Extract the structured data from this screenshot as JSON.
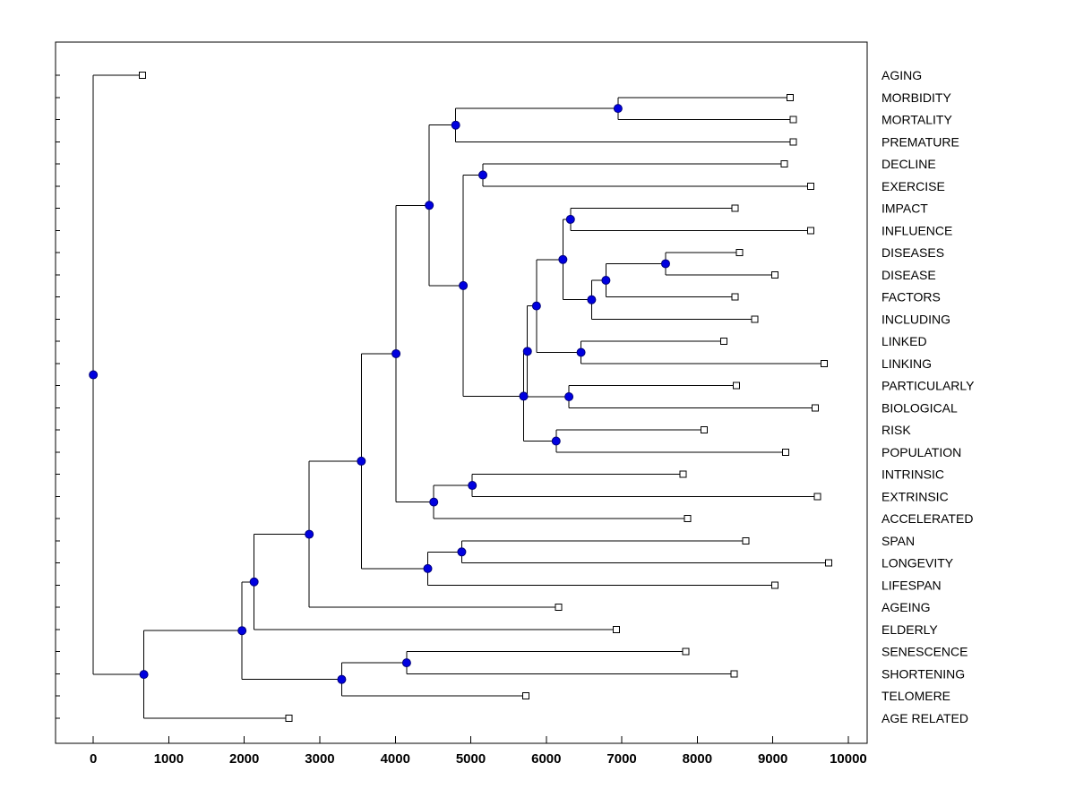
{
  "page": {
    "background": "#FFFFFF"
  },
  "chart_data": {
    "type": "tree",
    "subtype": "horizontal-dendrogram-phylotree",
    "title": "",
    "xlabel": "",
    "ylabel": "",
    "grid": false,
    "legend": null,
    "xlim": [
      -500,
      10250
    ],
    "x_tick_values": [
      0,
      1000,
      2000,
      3000,
      4000,
      5000,
      6000,
      7000,
      8000,
      9000,
      10000
    ],
    "x_tick_labels": [
      "0",
      "1000",
      "2000",
      "3000",
      "4000",
      "5000",
      "6000",
      "7000",
      "8000",
      "9000",
      "10000"
    ],
    "colors": {
      "axis": "#000000",
      "line": "#000000",
      "branch_marker_fill": "#0000E0",
      "branch_marker_edge": "#00007A",
      "leaf_marker_fill": "#FFFFFF",
      "marker_edge": "#000000",
      "label_color": "#000000",
      "background": "#FFFFFF"
    },
    "leaves": [
      {
        "label": "AGING",
        "dist": 650
      },
      {
        "label": "MORBIDITY",
        "dist": 9230
      },
      {
        "label": "MORTALITY",
        "dist": 9270
      },
      {
        "label": "PREMATURE",
        "dist": 9270
      },
      {
        "label": "DECLINE",
        "dist": 9150
      },
      {
        "label": "EXERCISE",
        "dist": 9500
      },
      {
        "label": "IMPACT",
        "dist": 8500
      },
      {
        "label": "INFLUENCE",
        "dist": 9500
      },
      {
        "label": "DISEASES",
        "dist": 8560
      },
      {
        "label": "DISEASE",
        "dist": 9030
      },
      {
        "label": "FACTORS",
        "dist": 8500
      },
      {
        "label": "INCLUDING",
        "dist": 8760
      },
      {
        "label": "LINKED",
        "dist": 8350
      },
      {
        "label": "LINKING",
        "dist": 9680
      },
      {
        "label": "PARTICULARLY",
        "dist": 8520
      },
      {
        "label": "BIOLOGICAL",
        "dist": 9560
      },
      {
        "label": "RISK",
        "dist": 8090
      },
      {
        "label": "POPULATION",
        "dist": 9170
      },
      {
        "label": "INTRINSIC",
        "dist": 7810
      },
      {
        "label": "EXTRINSIC",
        "dist": 9590
      },
      {
        "label": "ACCELERATED",
        "dist": 7870
      },
      {
        "label": "SPAN",
        "dist": 8640
      },
      {
        "label": "LONGEVITY",
        "dist": 9740
      },
      {
        "label": "LIFESPAN",
        "dist": 9030
      },
      {
        "label": "AGEING",
        "dist": 6160
      },
      {
        "label": "ELDERLY",
        "dist": 6930
      },
      {
        "label": "SENESCENCE",
        "dist": 7850
      },
      {
        "label": "SHORTENING",
        "dist": 8490
      },
      {
        "label": "TELOMERE",
        "dist": 5730
      },
      {
        "label": "AGE RELATED",
        "dist": 2590
      }
    ],
    "root": {
      "d": 0,
      "c": [
        {
          "leaf": 0
        },
        {
          "d": 670,
          "c": [
            {
              "d": 1970,
              "c": [
                {
                  "d": 2130,
                  "c": [
                    {
                      "d": 2860,
                      "c": [
                        {
                          "d": 3550,
                          "c": [
                            {
                              "d": 4010,
                              "c": [
                                {
                                  "d": 4450,
                                  "c": [
                                    {
                                      "d": 4800,
                                      "c": [
                                        {
                                          "d": 6950,
                                          "c": [
                                            {
                                              "leaf": 1
                                            },
                                            {
                                              "leaf": 2
                                            }
                                          ]
                                        },
                                        {
                                          "leaf": 3
                                        }
                                      ]
                                    },
                                    {
                                      "d": 4900,
                                      "c": [
                                        {
                                          "d": 5160,
                                          "c": [
                                            {
                                              "leaf": 4
                                            },
                                            {
                                              "leaf": 5
                                            }
                                          ]
                                        },
                                        {
                                          "d": 5700,
                                          "c": [
                                            {
                                              "d": 5750,
                                              "c": [
                                                {
                                                  "d": 5870,
                                                  "c": [
                                                    {
                                                      "d": 6220,
                                                      "c": [
                                                        {
                                                          "d": 6320,
                                                          "c": [
                                                            {
                                                              "leaf": 6
                                                            },
                                                            {
                                                              "leaf": 7
                                                            }
                                                          ]
                                                        },
                                                        {
                                                          "d": 6600,
                                                          "c": [
                                                            {
                                                              "d": 6790,
                                                              "c": [
                                                                {
                                                                  "d": 7580,
                                                                  "c": [
                                                                    {
                                                                      "leaf": 8
                                                                    },
                                                                    {
                                                                      "leaf": 9
                                                                    }
                                                                  ]
                                                                },
                                                                {
                                                                  "leaf": 10
                                                                }
                                                              ]
                                                            },
                                                            {
                                                              "leaf": 11
                                                            }
                                                          ]
                                                        }
                                                      ]
                                                    },
                                                    {
                                                      "d": 6460,
                                                      "c": [
                                                        {
                                                          "leaf": 12
                                                        },
                                                        {
                                                          "leaf": 13
                                                        }
                                                      ]
                                                    }
                                                  ]
                                                },
                                                {
                                                  "d": 6300,
                                                  "c": [
                                                    {
                                                      "leaf": 14
                                                    },
                                                    {
                                                      "leaf": 15
                                                    }
                                                  ]
                                                }
                                              ]
                                            },
                                            {
                                              "d": 6130,
                                              "c": [
                                                {
                                                  "leaf": 16
                                                },
                                                {
                                                  "leaf": 17
                                                }
                                              ]
                                            }
                                          ]
                                        }
                                      ]
                                    }
                                  ]
                                },
                                {
                                  "d": 4510,
                                  "c": [
                                    {
                                      "d": 5020,
                                      "c": [
                                        {
                                          "leaf": 18
                                        },
                                        {
                                          "leaf": 19
                                        }
                                      ]
                                    },
                                    {
                                      "leaf": 20
                                    }
                                  ]
                                }
                              ]
                            },
                            {
                              "d": 4430,
                              "c": [
                                {
                                  "d": 4880,
                                  "c": [
                                    {
                                      "leaf": 21
                                    },
                                    {
                                      "leaf": 22
                                    }
                                  ]
                                },
                                {
                                  "leaf": 23
                                }
                              ]
                            }
                          ]
                        },
                        {
                          "leaf": 24
                        }
                      ]
                    },
                    {
                      "leaf": 25
                    }
                  ]
                },
                {
                  "d": 3290,
                  "c": [
                    {
                      "d": 4150,
                      "c": [
                        {
                          "leaf": 26
                        },
                        {
                          "leaf": 27
                        }
                      ]
                    },
                    {
                      "leaf": 28
                    }
                  ]
                }
              ]
            },
            {
              "leaf": 29
            }
          ]
        }
      ]
    }
  }
}
